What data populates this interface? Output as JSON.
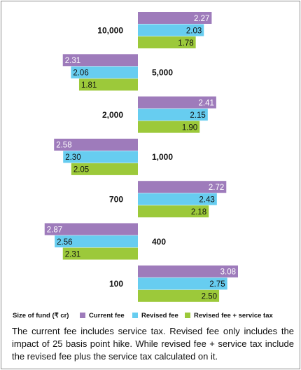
{
  "chart_data": {
    "type": "bar",
    "orientation": "horizontal-butterfly",
    "x_axis_label": "Size of fund (₹ cr)",
    "categories": [
      "10,000",
      "5,000",
      "2,000",
      "1,000",
      "700",
      "400",
      "100"
    ],
    "series": [
      {
        "name": "Current fee",
        "color": "#9e7bbb",
        "values": [
          2.27,
          2.31,
          2.41,
          2.58,
          2.72,
          2.87,
          3.08
        ],
        "labels": [
          "2.27",
          "2.31",
          "2.41",
          "2.58",
          "2.72",
          "2.87",
          "3.08"
        ]
      },
      {
        "name": "Revised fee",
        "color": "#67cdf0",
        "values": [
          2.03,
          2.06,
          2.15,
          2.3,
          2.43,
          2.56,
          2.75
        ],
        "labels": [
          "2.03",
          "2.06",
          "2.15",
          "2.30",
          "2.43",
          "2.56",
          "2.75"
        ]
      },
      {
        "name": "Revised fee + service tax",
        "color": "#9cc93a",
        "values": [
          1.78,
          1.81,
          1.9,
          2.05,
          2.18,
          2.31,
          2.5
        ],
        "labels": [
          "1.78",
          "1.81",
          "1.90",
          "2.05",
          "2.18",
          "2.31",
          "2.50"
        ]
      }
    ],
    "direction": [
      "right",
      "left",
      "right",
      "left",
      "right",
      "left",
      "right"
    ],
    "legend_position": "bottom",
    "grid": false
  },
  "legend": {
    "title": "Size of fund (₹ cr)",
    "items": [
      "Current fee",
      "Revised fee",
      "Revised fee + service tax"
    ]
  },
  "footnote": "The current fee includes service tax. Revised fee only includes the impact of 25 basis point hike. While revised fee + service tax include the revised fee plus the service tax calculated on it."
}
